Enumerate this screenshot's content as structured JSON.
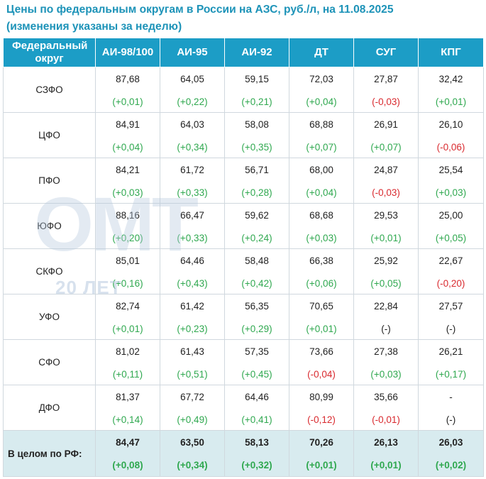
{
  "title": {
    "line1": "Цены по федеральным округам в России на АЗС, руб./л, на 11.08.2025",
    "line2": "(изменения указаны за неделю)"
  },
  "watermark": {
    "main": "ОМТ",
    "sub": "20 ЛЕТ"
  },
  "colors": {
    "header_bg": "#1c9dc6",
    "positive": "#2fa84f",
    "negative": "#d9292e",
    "total_bg": "#d8ebef",
    "title": "#1d93b8"
  },
  "table": {
    "headers": [
      "Федеральный округ",
      "АИ-98/100",
      "АИ-95",
      "АИ-92",
      "ДТ",
      "СУГ",
      "КПГ"
    ],
    "rows": [
      {
        "region": "СЗФО",
        "cells": [
          {
            "v": "87,68",
            "c": "(+0,01)",
            "s": "pos"
          },
          {
            "v": "64,05",
            "c": "(+0,22)",
            "s": "pos"
          },
          {
            "v": "59,15",
            "c": "(+0,21)",
            "s": "pos"
          },
          {
            "v": "72,03",
            "c": "(+0,04)",
            "s": "pos"
          },
          {
            "v": "27,87",
            "c": "(-0,03)",
            "s": "neg"
          },
          {
            "v": "32,42",
            "c": "(+0,01)",
            "s": "pos"
          }
        ]
      },
      {
        "region": "ЦФО",
        "cells": [
          {
            "v": "84,91",
            "c": "(+0,04)",
            "s": "pos"
          },
          {
            "v": "64,03",
            "c": "(+0,34)",
            "s": "pos"
          },
          {
            "v": "58,08",
            "c": "(+0,35)",
            "s": "pos"
          },
          {
            "v": "68,88",
            "c": "(+0,07)",
            "s": "pos"
          },
          {
            "v": "26,91",
            "c": "(+0,07)",
            "s": "pos"
          },
          {
            "v": "26,10",
            "c": "(-0,06)",
            "s": "neg"
          }
        ]
      },
      {
        "region": "ПФО",
        "cells": [
          {
            "v": "84,21",
            "c": "(+0,03)",
            "s": "pos"
          },
          {
            "v": "61,72",
            "c": "(+0,33)",
            "s": "pos"
          },
          {
            "v": "56,71",
            "c": "(+0,28)",
            "s": "pos"
          },
          {
            "v": "68,00",
            "c": "(+0,04)",
            "s": "pos"
          },
          {
            "v": "24,87",
            "c": "(-0,03)",
            "s": "neg"
          },
          {
            "v": "25,54",
            "c": "(+0,03)",
            "s": "pos"
          }
        ]
      },
      {
        "region": "ЮФО",
        "cells": [
          {
            "v": "88,16",
            "c": "(+0,20)",
            "s": "pos"
          },
          {
            "v": "66,47",
            "c": "(+0,33)",
            "s": "pos"
          },
          {
            "v": "59,62",
            "c": "(+0,24)",
            "s": "pos"
          },
          {
            "v": "68,68",
            "c": "(+0,03)",
            "s": "pos"
          },
          {
            "v": "29,53",
            "c": "(+0,01)",
            "s": "pos"
          },
          {
            "v": "25,00",
            "c": "(+0,05)",
            "s": "pos"
          }
        ]
      },
      {
        "region": "СКФО",
        "cells": [
          {
            "v": "85,01",
            "c": "(+0,16)",
            "s": "pos"
          },
          {
            "v": "64,46",
            "c": "(+0,43)",
            "s": "pos"
          },
          {
            "v": "58,48",
            "c": "(+0,42)",
            "s": "pos"
          },
          {
            "v": "66,38",
            "c": "(+0,06)",
            "s": "pos"
          },
          {
            "v": "25,92",
            "c": "(+0,05)",
            "s": "pos"
          },
          {
            "v": "22,67",
            "c": "(-0,20)",
            "s": "neg"
          }
        ]
      },
      {
        "region": "УФО",
        "cells": [
          {
            "v": "82,74",
            "c": "(+0,01)",
            "s": "pos"
          },
          {
            "v": "61,42",
            "c": "(+0,23)",
            "s": "pos"
          },
          {
            "v": "56,35",
            "c": "(+0,29)",
            "s": "pos"
          },
          {
            "v": "70,65",
            "c": "(+0,01)",
            "s": "pos"
          },
          {
            "v": "22,84",
            "c": "(-)",
            "s": "neu"
          },
          {
            "v": "27,57",
            "c": "(-)",
            "s": "neu"
          }
        ]
      },
      {
        "region": "СФО",
        "cells": [
          {
            "v": "81,02",
            "c": "(+0,11)",
            "s": "pos"
          },
          {
            "v": "61,43",
            "c": "(+0,51)",
            "s": "pos"
          },
          {
            "v": "57,35",
            "c": "(+0,45)",
            "s": "pos"
          },
          {
            "v": "73,66",
            "c": "(-0,04)",
            "s": "neg"
          },
          {
            "v": "27,38",
            "c": "(+0,03)",
            "s": "pos"
          },
          {
            "v": "26,21",
            "c": "(+0,17)",
            "s": "pos"
          }
        ]
      },
      {
        "region": "ДФО",
        "cells": [
          {
            "v": "81,37",
            "c": "(+0,14)",
            "s": "pos"
          },
          {
            "v": "67,72",
            "c": "(+0,49)",
            "s": "pos"
          },
          {
            "v": "64,46",
            "c": "(+0,41)",
            "s": "pos"
          },
          {
            "v": "80,99",
            "c": "(-0,12)",
            "s": "neg"
          },
          {
            "v": "35,66",
            "c": "(-0,01)",
            "s": "neg"
          },
          {
            "v": "-",
            "c": "(-)",
            "s": "neu"
          }
        ]
      }
    ],
    "total": {
      "region": "В целом по РФ:",
      "cells": [
        {
          "v": "84,47",
          "c": "(+0,08)",
          "s": "pos"
        },
        {
          "v": "63,50",
          "c": "(+0,34)",
          "s": "pos"
        },
        {
          "v": "58,13",
          "c": "(+0,32)",
          "s": "pos"
        },
        {
          "v": "70,26",
          "c": "(+0,01)",
          "s": "pos"
        },
        {
          "v": "26,13",
          "c": "(+0,01)",
          "s": "pos"
        },
        {
          "v": "26,03",
          "c": "(+0,02)",
          "s": "pos"
        }
      ]
    }
  }
}
